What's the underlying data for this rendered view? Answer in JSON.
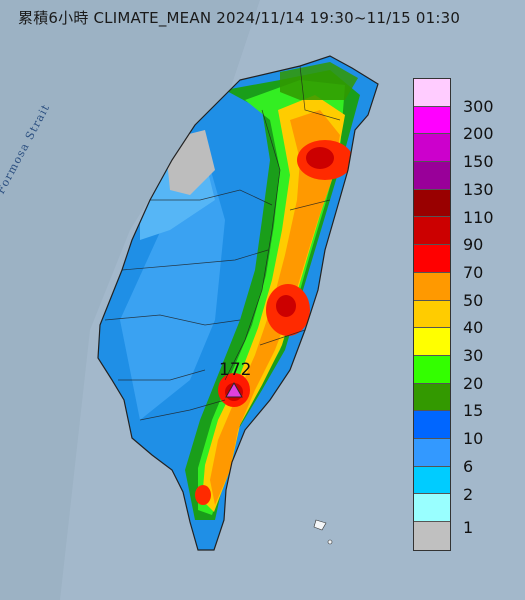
{
  "title": "累積6小時 CLIMATE_MEAN 2024/11/14 19:30~11/15 01:30",
  "sea_label": "Formosa Strait",
  "max_marker": {
    "value": "172",
    "color": "#e040e0"
  },
  "legend": {
    "colors": [
      "#ffccff",
      "#ff00ff",
      "#cc00cc",
      "#990099",
      "#990000",
      "#cc0000",
      "#ff0000",
      "#ff9900",
      "#ffcc00",
      "#ffff00",
      "#33ff00",
      "#339900",
      "#0066ff",
      "#3399ff",
      "#00ccff",
      "#99ffff",
      "#c0c0c0"
    ],
    "labels": [
      "300",
      "200",
      "150",
      "130",
      "110",
      "90",
      "70",
      "50",
      "40",
      "30",
      "20",
      "15",
      "10",
      "6",
      "2",
      "1"
    ]
  }
}
